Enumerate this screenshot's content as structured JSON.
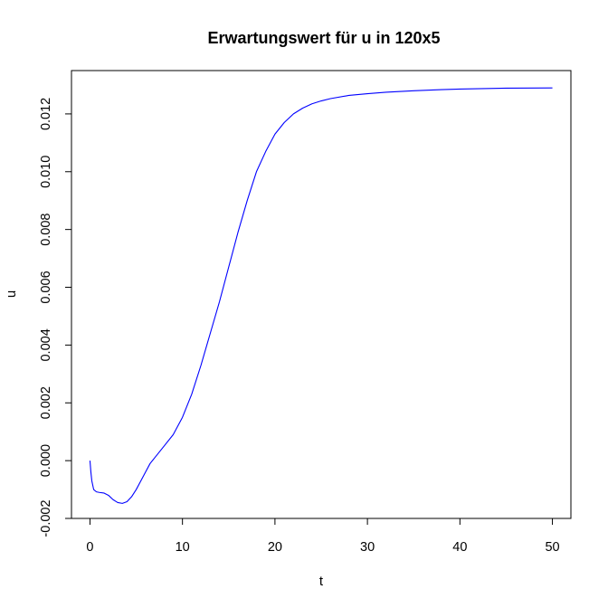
{
  "chart_data": {
    "type": "line",
    "title": "Erwartungswert für u in 120x5",
    "xlabel": "t",
    "ylabel": "u",
    "xlim": [
      -2,
      52
    ],
    "ylim": [
      -0.002,
      0.0135
    ],
    "x_ticks": [
      0,
      10,
      20,
      30,
      40,
      50
    ],
    "x_tick_labels": [
      "0",
      "10",
      "20",
      "30",
      "40",
      "50"
    ],
    "y_ticks": [
      -0.002,
      0.0,
      0.002,
      0.004,
      0.006,
      0.008,
      0.01,
      0.012
    ],
    "y_tick_labels": [
      "-0.002",
      "0.000",
      "0.002",
      "0.004",
      "0.006",
      "0.008",
      "0.010",
      "0.012"
    ],
    "grid": false,
    "series": [
      {
        "color": "#0000ff",
        "x": [
          0,
          0.1,
          0.2,
          0.4,
          0.7,
          1.0,
          1.5,
          2.0,
          2.5,
          3.0,
          3.5,
          4.0,
          4.5,
          5.0,
          5.5,
          6.0,
          6.5,
          7.0,
          8.0,
          9.0,
          10.0,
          11.0,
          12.0,
          13.0,
          14.0,
          15.0,
          16.0,
          17.0,
          18.0,
          19.0,
          20.0,
          21.0,
          22.0,
          23.0,
          24.0,
          25.0,
          26.0,
          28.0,
          30.0,
          32.0,
          35.0,
          38.0,
          40.0,
          45.0,
          50.0
        ],
        "y": [
          0.0,
          -0.0004,
          -0.0007,
          -0.001,
          -0.00108,
          -0.0011,
          -0.00112,
          -0.0012,
          -0.00135,
          -0.00145,
          -0.00148,
          -0.00142,
          -0.00125,
          -0.001,
          -0.0007,
          -0.0004,
          -0.0001,
          0.0001,
          0.0005,
          0.0009,
          0.0015,
          0.0023,
          0.0033,
          0.0044,
          0.0055,
          0.0067,
          0.0079,
          0.009,
          0.01,
          0.0107,
          0.0113,
          0.0117,
          0.012,
          0.0122,
          0.01235,
          0.01245,
          0.01253,
          0.01264,
          0.0127,
          0.01275,
          0.0128,
          0.01284,
          0.01286,
          0.01289,
          0.0129
        ]
      }
    ]
  }
}
